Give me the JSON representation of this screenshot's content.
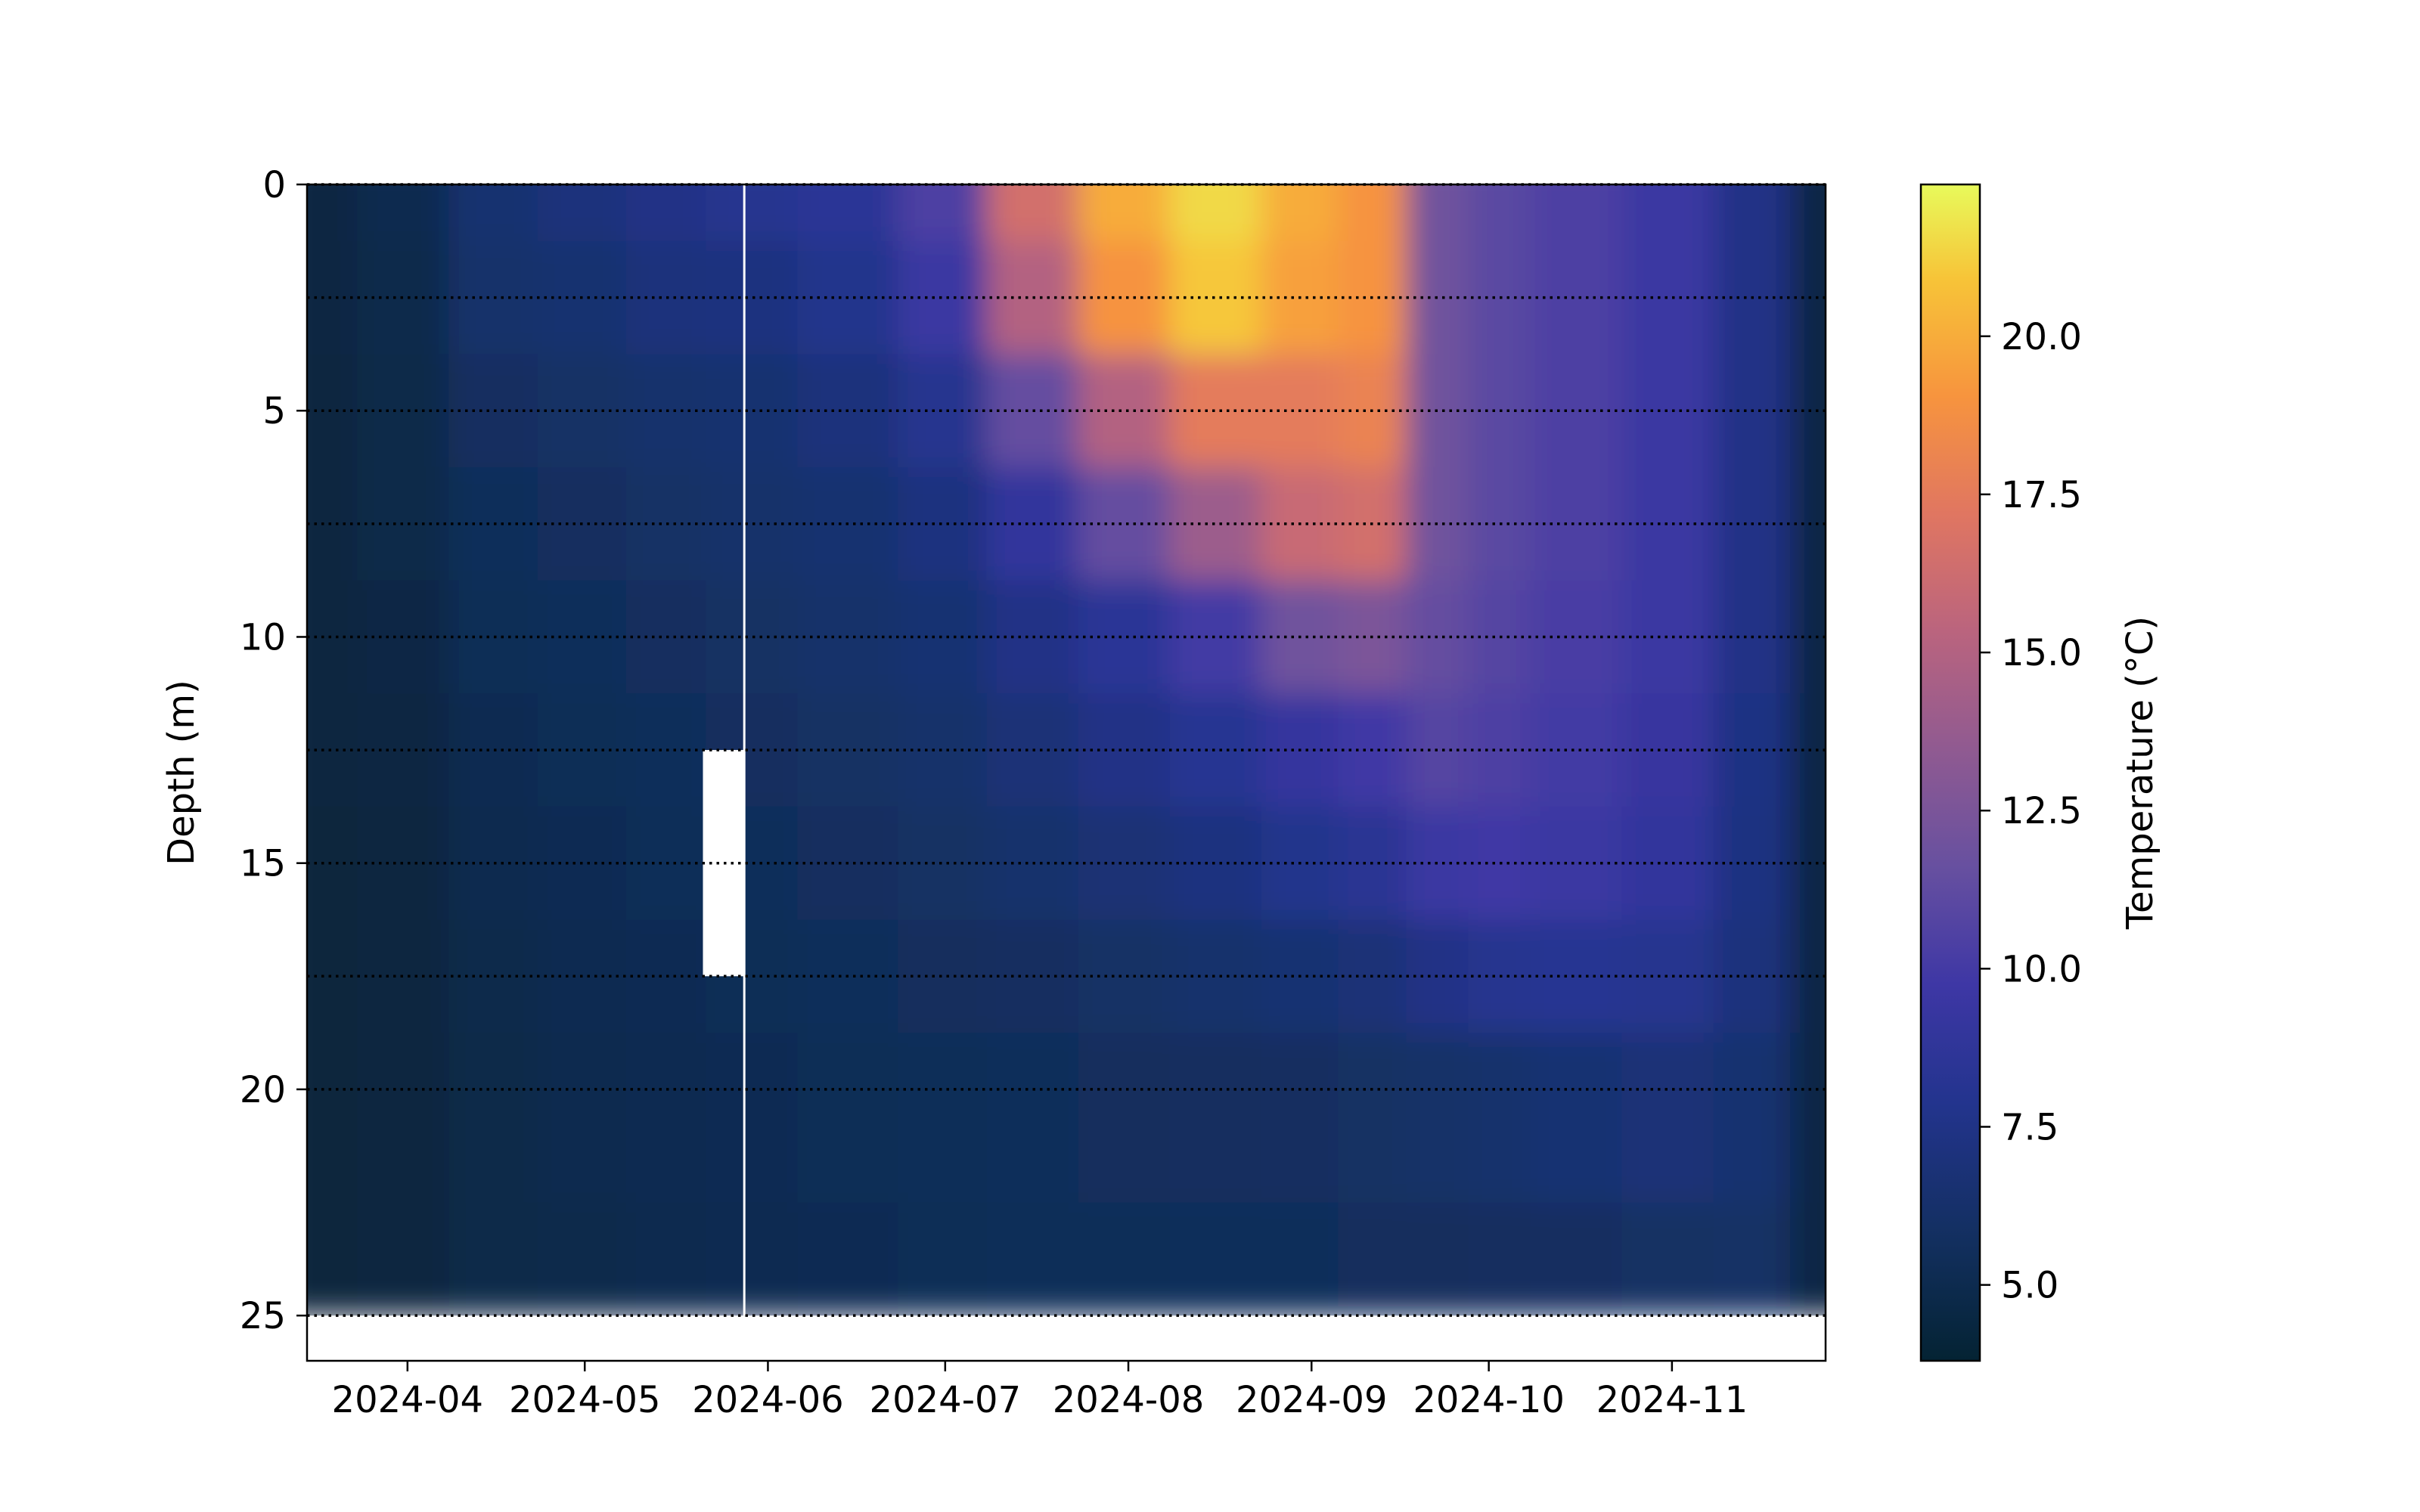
{
  "chart_data": {
    "type": "heatmap",
    "title": "",
    "xlabel": "",
    "ylabel": "Depth (m)",
    "colorbar_label": "Temperature (°C)",
    "colormap": "thermal",
    "colorbar_range": [
      3.8,
      22.4
    ],
    "colorbar_ticks": [
      5.0,
      7.5,
      10.0,
      12.5,
      15.0,
      17.5,
      20.0
    ],
    "colorbar_tick_labels": [
      "5.0",
      "7.5",
      "10.0",
      "12.5",
      "15.0",
      "17.5",
      "20.0"
    ],
    "ylim": [
      26,
      0
    ],
    "y_inverted": true,
    "y_ticks": [
      0,
      5,
      10,
      15,
      20,
      25
    ],
    "y_tick_labels": [
      "0",
      "5",
      "10",
      "15",
      "20",
      "25"
    ],
    "xlim": [
      "2024-03-15",
      "2024-11-27"
    ],
    "x_ticks": [
      "2024-04-01",
      "2024-05-01",
      "2024-06-01",
      "2024-07-01",
      "2024-08-01",
      "2024-09-01",
      "2024-10-01",
      "2024-11-01"
    ],
    "x_tick_labels": [
      "2024-04",
      "2024-05",
      "2024-06",
      "2024-07",
      "2024-08",
      "2024-09",
      "2024-10",
      "2024-11"
    ],
    "sensor_depths": [
      0,
      2.5,
      5,
      7.5,
      10,
      12.5,
      15,
      17.5,
      20,
      25
    ],
    "sensor_lines_style": "dotted",
    "gap_vertical": {
      "date": "2024-05-28",
      "depth_range": [
        0,
        25
      ]
    },
    "gap_block": {
      "date_range": [
        "2024-05-21",
        "2024-05-28"
      ],
      "depth_range": [
        12.5,
        17.5
      ]
    },
    "data_depth_range": [
      0,
      25
    ],
    "dates": [
      "2024-03-15",
      "2024-04-01",
      "2024-04-15",
      "2024-05-01",
      "2024-05-15",
      "2024-05-28",
      "2024-06-15",
      "2024-07-01",
      "2024-07-15",
      "2024-08-01",
      "2024-08-15",
      "2024-09-01",
      "2024-09-10",
      "2024-09-24",
      "2024-10-01",
      "2024-10-15",
      "2024-11-01",
      "2024-11-15",
      "2024-11-27"
    ],
    "depths": [
      0,
      2.5,
      5,
      7.5,
      10,
      12.5,
      15,
      17.5,
      20,
      25
    ],
    "temperature": [
      [
        4.5,
        5.0,
        6.5,
        7.0,
        7.5,
        8.0,
        8.5,
        10.5,
        16.5,
        20.0,
        21.5,
        20.0,
        19.0,
        12.0,
        11.0,
        10.5,
        9.5,
        7.5,
        4.6
      ],
      [
        4.5,
        4.9,
        6.2,
        6.5,
        7.0,
        7.2,
        7.8,
        9.5,
        15.0,
        19.0,
        21.0,
        19.5,
        19.0,
        12.0,
        11.0,
        10.5,
        9.5,
        7.5,
        4.6
      ],
      [
        4.4,
        4.8,
        5.8,
        6.0,
        6.3,
        6.5,
        7.0,
        8.0,
        11.5,
        15.0,
        17.5,
        17.5,
        18.0,
        12.0,
        11.0,
        10.5,
        9.5,
        7.5,
        4.6
      ],
      [
        4.4,
        4.7,
        5.5,
        5.7,
        6.0,
        6.2,
        6.5,
        7.2,
        9.0,
        11.5,
        14.0,
        16.0,
        16.5,
        12.0,
        11.0,
        10.5,
        9.5,
        7.5,
        4.6
      ],
      [
        4.3,
        4.6,
        5.3,
        5.5,
        5.7,
        5.9,
        6.2,
        6.6,
        7.5,
        8.5,
        10.0,
        12.0,
        12.5,
        11.5,
        10.8,
        10.3,
        9.5,
        7.5,
        4.6
      ],
      [
        4.3,
        4.5,
        5.1,
        5.3,
        5.5,
        5.7,
        5.9,
        6.2,
        6.8,
        7.5,
        8.2,
        9.2,
        9.8,
        10.8,
        10.5,
        10.0,
        9.3,
        7.4,
        4.6
      ],
      [
        4.2,
        4.4,
        5.0,
        5.2,
        5.4,
        5.5,
        5.7,
        5.9,
        6.3,
        6.7,
        7.2,
        7.8,
        8.3,
        9.5,
        9.8,
        9.5,
        9.0,
        7.3,
        4.6
      ],
      [
        4.2,
        4.4,
        4.9,
        5.1,
        5.2,
        5.3,
        5.5,
        5.6,
        5.8,
        6.0,
        6.3,
        6.6,
        6.8,
        7.5,
        8.0,
        8.2,
        8.0,
        7.0,
        4.6
      ],
      [
        4.2,
        4.3,
        4.8,
        5.0,
        5.1,
        5.2,
        5.3,
        5.4,
        5.5,
        5.6,
        5.7,
        5.8,
        5.9,
        6.1,
        6.3,
        6.6,
        6.8,
        6.5,
        4.6
      ],
      [
        4.2,
        4.3,
        4.7,
        4.9,
        5.0,
        5.1,
        5.2,
        5.3,
        5.4,
        5.4,
        5.5,
        5.5,
        5.6,
        5.6,
        5.7,
        5.8,
        5.9,
        6.0,
        4.6
      ]
    ]
  }
}
